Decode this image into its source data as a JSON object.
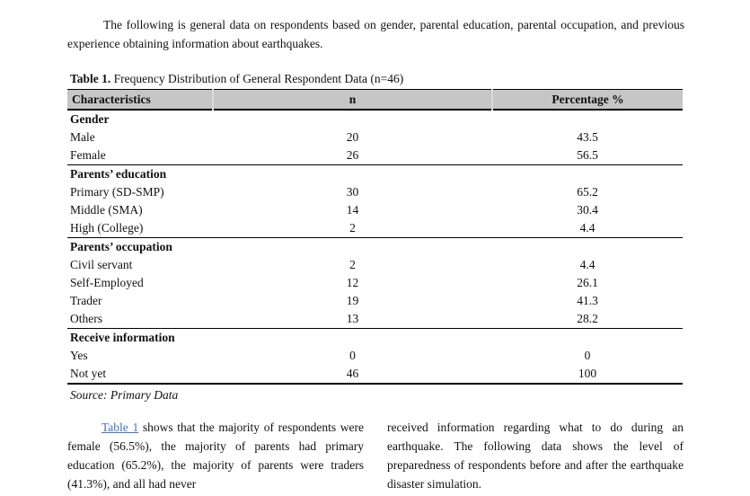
{
  "intro": {
    "text": "The following is general data on respondents based on gender, parental education, parental occupation, and previous experience obtaining information about earthquakes."
  },
  "table": {
    "caption_label": "Table 1.",
    "caption_rest": " Frequency Distribution of General Respondent Data (n=46)",
    "columns": [
      "Characteristics",
      "n",
      "Percentage %"
    ],
    "rows": [
      {
        "label": "Gender",
        "section": true
      },
      {
        "label": "Male",
        "n": "20",
        "pct": "43.5"
      },
      {
        "label": "Female",
        "n": "26",
        "pct": "56.5"
      },
      {
        "label": "Parents’ education",
        "section": true
      },
      {
        "label": "Primary (SD-SMP)",
        "n": "30",
        "pct": "65.2"
      },
      {
        "label": "Middle (SMA)",
        "n": "14",
        "pct": "30.4"
      },
      {
        "label": "High (College)",
        "n": "2",
        "pct": "4.4"
      },
      {
        "label": "Parents’ occupation",
        "section": true
      },
      {
        "label": "Civil servant",
        "n": "2",
        "pct": "4.4"
      },
      {
        "label": "Self-Employed",
        "n": "12",
        "pct": "26.1"
      },
      {
        "label": "Trader",
        "n": "19",
        "pct": "41.3"
      },
      {
        "label": "Others",
        "n": "13",
        "pct": "28.2"
      },
      {
        "label": "Receive information",
        "section": true
      },
      {
        "label": "Yes",
        "n": "0",
        "pct": "0"
      },
      {
        "label": "Not yet",
        "n": "46",
        "pct": "100"
      }
    ],
    "source": "Source: Primary Data"
  },
  "body_text": {
    "left_link": "Table 1",
    "left_rest": " shows that the majority of respondents were female (56.5%), the majority of parents had primary education (65.2%), the majority of parents were traders (41.3%), and all had never",
    "right": "received information regarding what to do during an earthquake. The following data shows the level of preparedness of respondents before and after the earthquake disaster simulation."
  },
  "colors": {
    "header_bg": "#c6c6c6",
    "link": "#4472C4"
  }
}
